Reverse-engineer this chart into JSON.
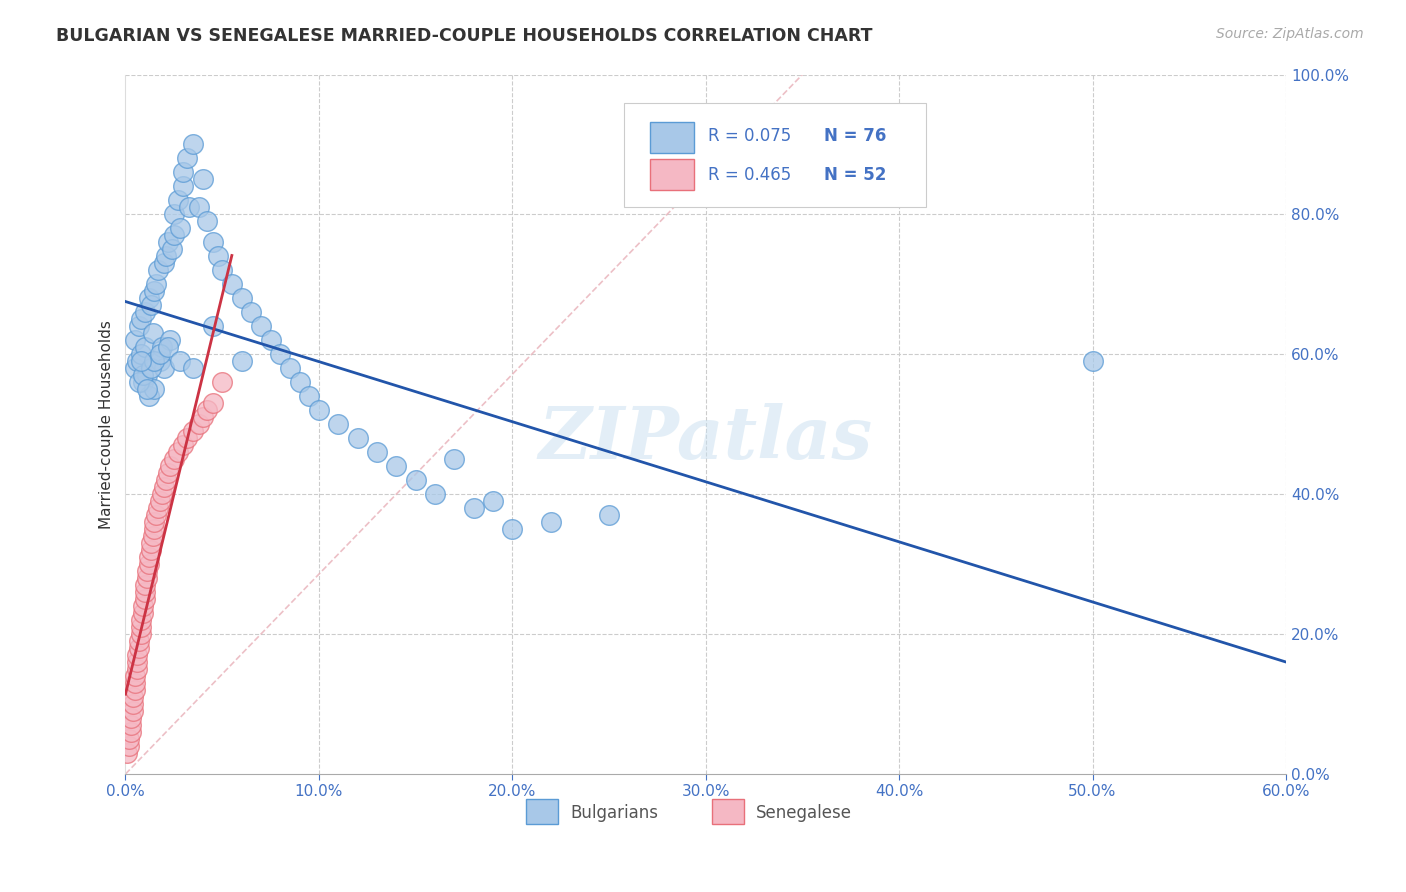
{
  "title": "BULGARIAN VS SENEGALESE MARRIED-COUPLE HOUSEHOLDS CORRELATION CHART",
  "source": "Source: ZipAtlas.com",
  "ylabel": "Married-couple Households",
  "xlim": [
    0.0,
    0.6
  ],
  "ylim": [
    0.0,
    1.0
  ],
  "xticks": [
    0.0,
    0.1,
    0.2,
    0.3,
    0.4,
    0.5,
    0.6
  ],
  "xticklabels": [
    "0.0%",
    "10.0%",
    "20.0%",
    "30.0%",
    "40.0%",
    "50.0%",
    "60.0%"
  ],
  "yticks": [
    0.0,
    0.2,
    0.4,
    0.6,
    0.8,
    1.0
  ],
  "yticklabels": [
    "0.0%",
    "20.0%",
    "40.0%",
    "60.0%",
    "80.0%",
    "100.0%"
  ],
  "bg_color": "#ffffff",
  "grid_color": "#cccccc",
  "bulgarian_color": "#a8c8e8",
  "bulgarian_edge": "#5b9bd5",
  "senegalese_color": "#f5b8c4",
  "senegalese_edge": "#e8707a",
  "blue_line_color": "#2255aa",
  "pink_line_color": "#cc3344",
  "diag_color": "#e8b0b8",
  "R_bulg": 0.075,
  "N_bulg": 76,
  "R_sene": 0.465,
  "N_sene": 52,
  "tick_color": "#4472c4",
  "watermark": "ZIPatlas",
  "bulgarians_x": [
    0.005,
    0.005,
    0.006,
    0.007,
    0.008,
    0.008,
    0.009,
    0.01,
    0.01,
    0.011,
    0.012,
    0.012,
    0.013,
    0.014,
    0.015,
    0.015,
    0.016,
    0.017,
    0.018,
    0.019,
    0.02,
    0.02,
    0.021,
    0.022,
    0.023,
    0.024,
    0.025,
    0.025,
    0.027,
    0.028,
    0.03,
    0.03,
    0.032,
    0.033,
    0.035,
    0.038,
    0.04,
    0.042,
    0.045,
    0.048,
    0.05,
    0.055,
    0.06,
    0.065,
    0.07,
    0.075,
    0.08,
    0.085,
    0.09,
    0.095,
    0.1,
    0.11,
    0.12,
    0.13,
    0.14,
    0.15,
    0.16,
    0.17,
    0.18,
    0.19,
    0.2,
    0.22,
    0.25,
    0.007,
    0.009,
    0.011,
    0.013,
    0.015,
    0.018,
    0.022,
    0.028,
    0.035,
    0.045,
    0.06,
    0.5,
    0.008
  ],
  "bulgarians_y": [
    0.58,
    0.62,
    0.59,
    0.64,
    0.6,
    0.65,
    0.56,
    0.66,
    0.61,
    0.57,
    0.68,
    0.54,
    0.67,
    0.63,
    0.69,
    0.55,
    0.7,
    0.72,
    0.59,
    0.61,
    0.73,
    0.58,
    0.74,
    0.76,
    0.62,
    0.75,
    0.77,
    0.8,
    0.82,
    0.78,
    0.84,
    0.86,
    0.88,
    0.81,
    0.9,
    0.81,
    0.85,
    0.79,
    0.76,
    0.74,
    0.72,
    0.7,
    0.68,
    0.66,
    0.64,
    0.62,
    0.6,
    0.58,
    0.56,
    0.54,
    0.52,
    0.5,
    0.48,
    0.46,
    0.44,
    0.42,
    0.4,
    0.45,
    0.38,
    0.39,
    0.35,
    0.36,
    0.37,
    0.56,
    0.57,
    0.55,
    0.58,
    0.59,
    0.6,
    0.61,
    0.59,
    0.58,
    0.64,
    0.59,
    0.59,
    0.59
  ],
  "senegalese_x": [
    0.001,
    0.002,
    0.002,
    0.003,
    0.003,
    0.003,
    0.004,
    0.004,
    0.004,
    0.005,
    0.005,
    0.005,
    0.006,
    0.006,
    0.006,
    0.007,
    0.007,
    0.008,
    0.008,
    0.008,
    0.009,
    0.009,
    0.01,
    0.01,
    0.01,
    0.011,
    0.011,
    0.012,
    0.012,
    0.013,
    0.013,
    0.014,
    0.015,
    0.015,
    0.016,
    0.017,
    0.018,
    0.019,
    0.02,
    0.021,
    0.022,
    0.023,
    0.025,
    0.027,
    0.03,
    0.032,
    0.035,
    0.038,
    0.04,
    0.042,
    0.045,
    0.05
  ],
  "senegalese_y": [
    0.03,
    0.04,
    0.05,
    0.06,
    0.07,
    0.08,
    0.09,
    0.1,
    0.11,
    0.12,
    0.13,
    0.14,
    0.15,
    0.16,
    0.17,
    0.18,
    0.19,
    0.2,
    0.21,
    0.22,
    0.23,
    0.24,
    0.25,
    0.26,
    0.27,
    0.28,
    0.29,
    0.3,
    0.31,
    0.32,
    0.33,
    0.34,
    0.35,
    0.36,
    0.37,
    0.38,
    0.39,
    0.4,
    0.41,
    0.42,
    0.43,
    0.44,
    0.45,
    0.46,
    0.47,
    0.48,
    0.49,
    0.5,
    0.51,
    0.52,
    0.53,
    0.56
  ]
}
